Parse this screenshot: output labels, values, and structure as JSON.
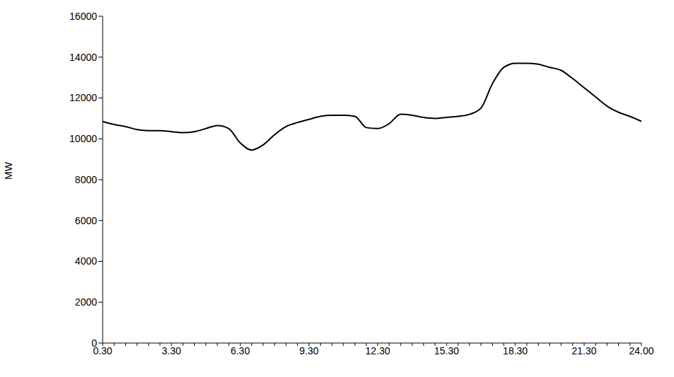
{
  "chart_data": {
    "type": "line",
    "ylabel": "MW",
    "categories": [
      "0.30",
      null,
      null,
      null,
      null,
      null,
      "3.30",
      null,
      null,
      null,
      null,
      null,
      "6.30",
      null,
      null,
      null,
      null,
      null,
      "9.30",
      null,
      null,
      null,
      null,
      null,
      "12.30",
      null,
      null,
      null,
      null,
      null,
      "15.30",
      null,
      null,
      null,
      null,
      null,
      "18.30",
      null,
      null,
      null,
      null,
      null,
      "21.30",
      null,
      null,
      null,
      null,
      "24.00"
    ],
    "values": [
      10850,
      10700,
      10600,
      10450,
      10400,
      10400,
      10350,
      10300,
      10350,
      10500,
      10650,
      10500,
      9800,
      9450,
      9700,
      10200,
      10600,
      10800,
      10950,
      11100,
      11150,
      11150,
      11100,
      10550,
      10500,
      10750,
      11200,
      11150,
      11050,
      11000,
      11050,
      11100,
      11200,
      11500,
      12700,
      13500,
      13700,
      13700,
      13650,
      13500,
      13350,
      12950,
      12500,
      12050,
      11600,
      11300,
      11100,
      10850
    ],
    "color": "#000000",
    "ylim": [
      0,
      16000
    ],
    "yticks": [
      0,
      2000,
      4000,
      6000,
      8000,
      10000,
      12000,
      14000,
      16000
    ],
    "grid": false
  }
}
